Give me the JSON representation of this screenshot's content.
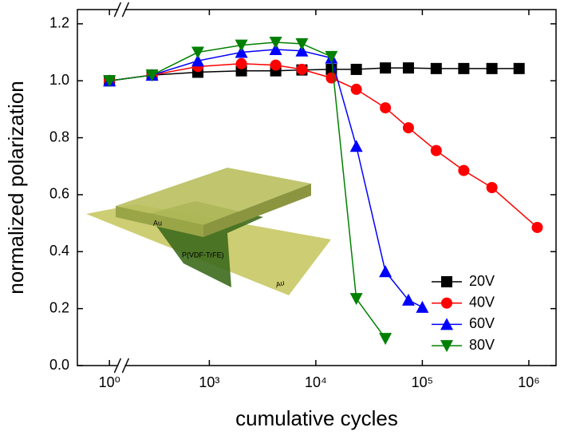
{
  "chart_data": {
    "type": "line",
    "xlabel": "cumulative cycles",
    "ylabel": "normalized polarization",
    "xscale": "log",
    "xlim": [
      0.5,
      1800000
    ],
    "x_break": [
      1.3,
      150
    ],
    "xticks": [
      {
        "value": 1,
        "label": "10⁰"
      },
      {
        "value": 1000,
        "label": "10³"
      },
      {
        "value": 10000,
        "label": "10⁴"
      },
      {
        "value": 100000,
        "label": "10⁵"
      },
      {
        "value": 1000000,
        "label": "10⁶"
      }
    ],
    "ylim": [
      0,
      1.25
    ],
    "yticks": [
      {
        "value": 0,
        "label": "0.0"
      },
      0.2,
      0.4,
      0.6,
      0.8,
      {
        "value": 1,
        "label": "1.0"
      },
      1.2
    ],
    "legend": "lower right",
    "inset_labels": [
      "Au",
      "P(VDF-TrFE)",
      "Au"
    ],
    "series": [
      {
        "name": "20V",
        "color": "#000000",
        "marker": "square",
        "x": [
          1,
          290,
          780,
          2000,
          4200,
          7400,
          14000,
          24000,
          45000,
          74000,
          135000,
          245000,
          450000,
          810000
        ],
        "values": [
          1.0,
          1.02,
          1.03,
          1.035,
          1.035,
          1.038,
          1.04,
          1.04,
          1.045,
          1.045,
          1.043,
          1.043,
          1.043,
          1.043
        ]
      },
      {
        "name": "40V",
        "color": "#ff0000",
        "marker": "circle",
        "x": [
          1,
          290,
          780,
          2000,
          4200,
          7400,
          14000,
          24000,
          45000,
          74000,
          135000,
          245000,
          450000,
          1200000
        ],
        "values": [
          1.0,
          1.02,
          1.05,
          1.06,
          1.055,
          1.04,
          1.01,
          0.97,
          0.905,
          0.835,
          0.755,
          0.685,
          0.625,
          0.485
        ]
      },
      {
        "name": "60V",
        "color": "#0000ff",
        "marker": "triangle-up",
        "x": [
          1,
          290,
          780,
          2000,
          4200,
          7400,
          14000,
          24000,
          45000,
          74000,
          100000
        ],
        "values": [
          1.0,
          1.02,
          1.07,
          1.1,
          1.11,
          1.105,
          1.08,
          0.77,
          0.33,
          0.23,
          0.205
        ]
      },
      {
        "name": "80V",
        "color": "#008000",
        "marker": "triangle-down",
        "x": [
          1,
          290,
          780,
          2000,
          4200,
          7400,
          14000,
          24000,
          45000
        ],
        "values": [
          1.0,
          1.02,
          1.1,
          1.125,
          1.135,
          1.13,
          1.085,
          0.235,
          0.095
        ]
      }
    ]
  }
}
